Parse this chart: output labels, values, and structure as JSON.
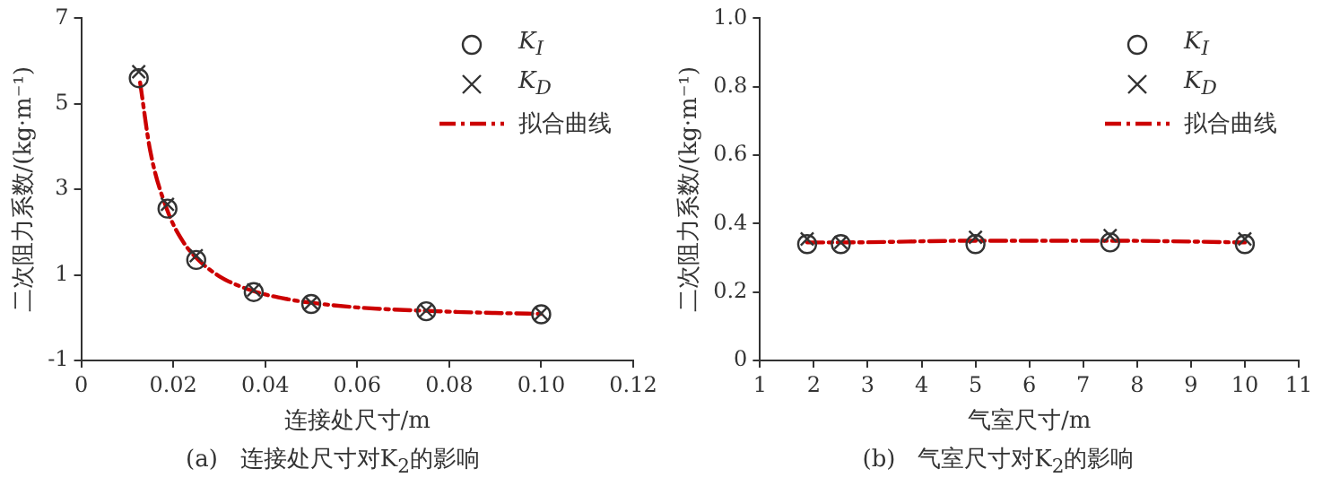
{
  "chart_data": [
    {
      "type": "scatter",
      "xlabel": "连接处尺寸/m",
      "ylabel": "二次阻力系数/(kg·m⁻¹)",
      "annotations": [
        "(a)   连接处尺寸对K$_{2}$的影响"
      ],
      "xlim": [
        0,
        0.12
      ],
      "xticks": [
        0,
        0.02,
        0.04,
        0.06,
        0.08,
        {
          "value": 0.1,
          "label": "0.10"
        },
        0.12
      ],
      "ylim": [
        -1,
        7
      ],
      "yticks": [
        -1,
        1,
        3,
        5,
        7
      ],
      "grid": false,
      "legend": "top right",
      "series": [
        {
          "name": "K$_{I}$",
          "marker": "circle",
          "color": "#333333",
          "x": [
            0.0125,
            0.01875,
            0.025,
            0.0375,
            0.05,
            0.075,
            0.1
          ],
          "values": [
            5.6,
            2.55,
            1.35,
            0.6,
            0.32,
            0.15,
            0.08
          ]
        },
        {
          "name": "K$_{D}$",
          "marker": "cross",
          "color": "#333333",
          "x": [
            0.0125,
            0.01875,
            0.025,
            0.0375,
            0.05,
            0.075,
            0.1
          ],
          "values": [
            5.75,
            2.65,
            1.45,
            0.65,
            0.35,
            0.17,
            0.1
          ]
        },
        {
          "name": "拟合曲线",
          "type": "line",
          "marker": "none",
          "line_style": "dashed",
          "color": "#cc0000",
          "x": [
            0.0128,
            0.015,
            0.01875,
            0.022,
            0.025,
            0.03,
            0.0375,
            0.045,
            0.05,
            0.06,
            0.075,
            0.09,
            0.1
          ],
          "values": [
            5.5,
            3.9,
            2.5,
            1.8,
            1.4,
            0.97,
            0.62,
            0.43,
            0.35,
            0.24,
            0.16,
            0.11,
            0.09
          ]
        }
      ]
    },
    {
      "type": "scatter",
      "xlabel": "气室尺寸/m",
      "ylabel": "二次阻力系数/(kg·m⁻¹)",
      "annotations": [
        "(b)   气室尺寸对K$_{2}$的影响"
      ],
      "xlim": [
        1,
        11
      ],
      "xticks": [
        1,
        2,
        3,
        4,
        5,
        6,
        7,
        8,
        9,
        10,
        11
      ],
      "ylim": [
        0,
        1
      ],
      "yticks": [
        0,
        0.2,
        0.4,
        0.6,
        0.8,
        {
          "value": 1,
          "label": "1.0"
        }
      ],
      "grid": false,
      "legend": "top right",
      "series": [
        {
          "name": "K$_{I}$",
          "marker": "circle",
          "color": "#333333",
          "x": [
            1.875,
            2.5,
            5,
            7.5,
            10
          ],
          "values": [
            0.34,
            0.34,
            0.34,
            0.345,
            0.34
          ]
        },
        {
          "name": "K$_{D}$",
          "marker": "cross",
          "color": "#333333",
          "x": [
            1.875,
            2.5,
            5,
            7.5,
            10
          ],
          "values": [
            0.355,
            0.345,
            0.36,
            0.365,
            0.355
          ]
        },
        {
          "name": "拟合曲线",
          "type": "line",
          "marker": "none",
          "line_style": "dashed",
          "color": "#cc0000",
          "x": [
            1.875,
            2.5,
            5,
            7.5,
            10
          ],
          "values": [
            0.345,
            0.345,
            0.35,
            0.35,
            0.345
          ]
        }
      ]
    }
  ]
}
